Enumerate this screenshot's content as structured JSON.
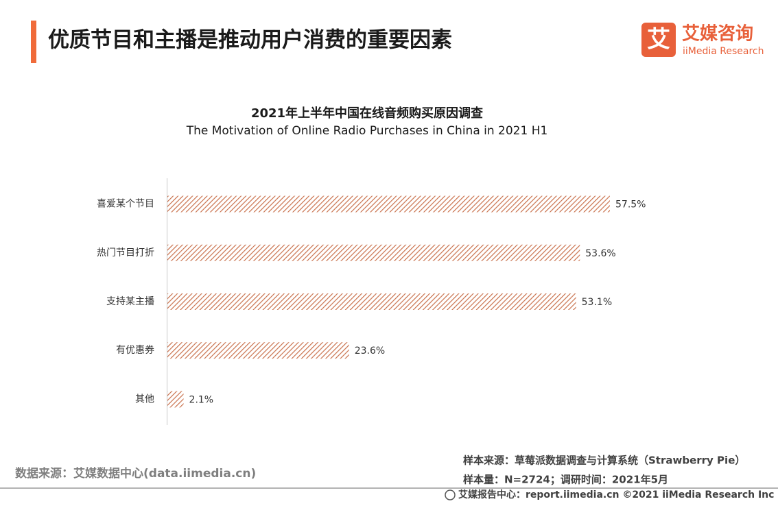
{
  "header": {
    "title": "优质节目和主播是推动用户消费的重要因素"
  },
  "logo": {
    "icon": "艾",
    "name": "艾媒咨询",
    "name_en": "iiMedia Research"
  },
  "chart_data": {
    "type": "bar",
    "orientation": "horizontal",
    "title": "2021年上半年中国在线音频购买原因调查",
    "subtitle": "The Motivation of Online Radio Purchases in China in 2021 H1",
    "categories": [
      "喜爱某个节目",
      "热门节目打折",
      "支持某主播",
      "有优惠券",
      "其他"
    ],
    "values": [
      57.5,
      53.6,
      53.1,
      23.6,
      2.1
    ],
    "value_labels": [
      "57.5%",
      "53.6%",
      "53.1%",
      "23.6%",
      "2.1%"
    ],
    "color": "#c9714c",
    "pattern": "hatch"
  },
  "footer": {
    "source": "数据来源：艾媒数据中心(data.iimedia.cn)",
    "sample_source": "样本来源：草莓派数据调查与计算系统（Strawberry Pie）",
    "sample_size": "样本量：N=2724；调研时间：2021年5月",
    "copyright": "艾媒报告中心：report.iimedia.cn   ©2021  iiMedia Research  Inc"
  }
}
